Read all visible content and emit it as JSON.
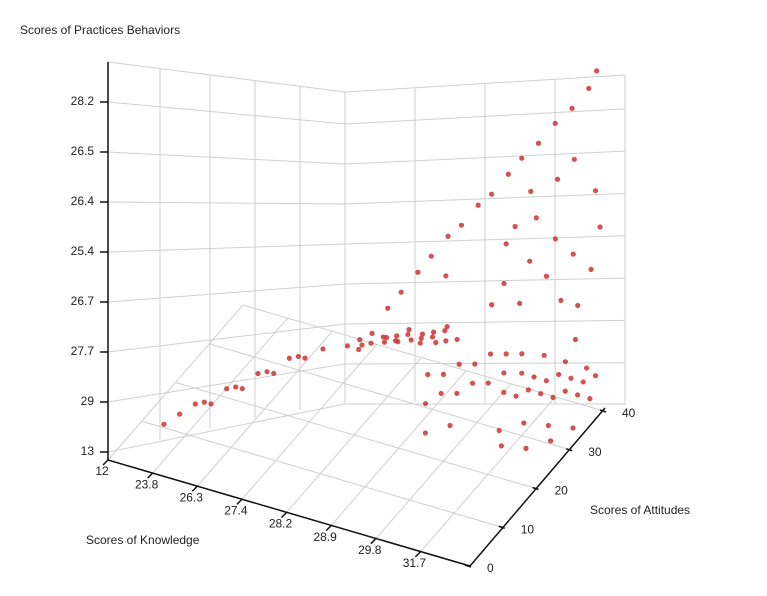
{
  "chart_data": {
    "type": "scatter3d",
    "zlabel": "Scores  of Practices Behaviors",
    "xlabel": "Scores  of  Knowledge",
    "ylabel": "Scores  of Attitudes",
    "color": "#cc3333",
    "xlim": [
      0,
      8
    ],
    "ylim": [
      0,
      40
    ],
    "zlim": [
      0,
      7.8
    ],
    "xticks": [
      {
        "value": 0,
        "label": "12"
      },
      {
        "value": 1,
        "label": "23.8"
      },
      {
        "value": 2,
        "label": "26.3"
      },
      {
        "value": 3,
        "label": "27.4"
      },
      {
        "value": 4,
        "label": "28.2"
      },
      {
        "value": 5,
        "label": "28.9"
      },
      {
        "value": 6,
        "label": "29.8"
      },
      {
        "value": 7,
        "label": "31.7"
      }
    ],
    "yticks": [
      0,
      10,
      20,
      30,
      40
    ],
    "zticks": [
      {
        "value": 0,
        "label": "13"
      },
      {
        "value": 1,
        "label": "29"
      },
      {
        "value": 2,
        "label": "27.7"
      },
      {
        "value": 3,
        "label": "26.7"
      },
      {
        "value": 4,
        "label": "25.4"
      },
      {
        "value": 5,
        "label": "26.4"
      },
      {
        "value": 6,
        "label": "26.5"
      },
      {
        "value": 7,
        "label": "28.2"
      }
    ],
    "x": [
      0.8,
      1.0,
      1.2,
      1.4,
      1.6,
      1.8,
      2.0,
      2.2,
      2.4,
      2.6,
      1.1,
      1.5,
      1.9,
      2.3,
      2.7,
      3.4,
      3.6,
      3.8,
      4.0,
      4.2,
      4.4,
      4.6,
      4.8,
      5.0,
      3.5,
      3.7,
      3.9,
      4.1,
      4.3,
      4.5,
      4.7,
      4.9,
      5.1,
      3.8,
      4.2,
      4.6,
      5.0,
      4.0,
      4.4,
      4.8,
      5.2,
      5.4,
      5.6,
      5.8,
      6.0,
      6.2,
      6.4,
      5.3,
      5.5,
      5.7,
      5.9,
      6.1,
      6.3,
      5.6,
      6.0,
      6.6,
      6.8,
      7.0,
      7.2,
      7.4,
      7.6,
      7.8,
      8.0,
      6.7,
      6.9,
      7.1,
      7.3,
      7.5,
      7.7,
      7.9,
      6.8,
      7.2,
      7.6,
      8.0,
      7.0,
      7.4,
      7.8,
      6.9,
      7.3,
      7.7,
      4.0,
      4.3,
      4.6,
      4.9,
      5.2,
      5.5,
      5.8,
      6.1,
      6.4,
      6.7,
      7.0,
      7.3,
      7.6,
      7.9,
      8.0,
      6.2,
      6.8,
      7.2,
      7.5,
      5.0,
      6.0,
      6.5,
      7.0,
      7.5,
      8.0,
      6.2,
      6.8,
      7.4,
      7.9,
      5.8,
      6.6,
      7.2,
      7.8,
      6.4,
      7.6
    ],
    "y": [
      6,
      8,
      10,
      12,
      14,
      16,
      18,
      20,
      22,
      24,
      14,
      18,
      22,
      26,
      28,
      26,
      27,
      28,
      29,
      30,
      31,
      32,
      33,
      34,
      28,
      29,
      30,
      31,
      32,
      33,
      34,
      35,
      36,
      25,
      27,
      29,
      31,
      33,
      35,
      37,
      26,
      28,
      30,
      32,
      34,
      36,
      38,
      24,
      26,
      28,
      30,
      32,
      34,
      20,
      22,
      30,
      31,
      32,
      33,
      34,
      35,
      36,
      37,
      34,
      35,
      36,
      37,
      38,
      39,
      40,
      26,
      28,
      30,
      32,
      24,
      26,
      28,
      38,
      39,
      40,
      30,
      30,
      31,
      31,
      32,
      32,
      33,
      33,
      34,
      34,
      35,
      36,
      37,
      38,
      39,
      36,
      37,
      38,
      39,
      34,
      38,
      39,
      40,
      40,
      40,
      40,
      40,
      40,
      40,
      37,
      38,
      39,
      40,
      36,
      38
    ],
    "z": [
      0.3,
      0.4,
      0.5,
      0.4,
      0.6,
      0.5,
      0.7,
      0.6,
      0.8,
      0.7,
      0.2,
      0.3,
      0.4,
      0.5,
      0.6,
      1.0,
      1.1,
      1.2,
      1.0,
      1.1,
      1.2,
      1.0,
      1.1,
      0.9,
      0.8,
      0.9,
      1.0,
      0.9,
      1.0,
      0.8,
      0.9,
      1.0,
      0.8,
      1.2,
      1.3,
      1.2,
      1.1,
      0.7,
      0.8,
      0.9,
      0.9,
      0.8,
      0.9,
      0.8,
      0.9,
      0.8,
      0.7,
      0.5,
      0.6,
      0.5,
      0.6,
      0.5,
      0.6,
      0.3,
      0.4,
      0.6,
      0.5,
      0.6,
      0.5,
      0.4,
      0.5,
      0.4,
      0.3,
      0.7,
      0.6,
      0.5,
      0.6,
      0.5,
      0.4,
      0.5,
      0.2,
      0.3,
      0.2,
      0.1,
      0.1,
      0.0,
      0.1,
      0.8,
      0.7,
      0.6,
      1.6,
      2.0,
      2.4,
      2.8,
      3.2,
      3.5,
      3.9,
      4.2,
      4.6,
      5.0,
      5.3,
      5.7,
      6.0,
      6.4,
      6.7,
      3.0,
      3.6,
      4.4,
      4.8,
      2.2,
      2.0,
      2.5,
      3.0,
      1.8,
      3.5,
      1.5,
      2.2,
      2.8,
      4.2,
      1.6,
      4.0,
      1.9,
      2.6,
      3.4,
      1.3
    ]
  }
}
